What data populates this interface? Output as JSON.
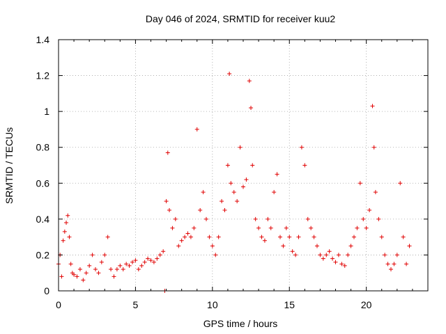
{
  "chart_data": {
    "type": "scatter",
    "title": "Day 046 of 2024, SRMTID for receiver kuu2",
    "xlabel": "GPS time / hours",
    "ylabel": "SRMTID / TECUs",
    "xlim": [
      0,
      24
    ],
    "ylim": [
      0,
      1.4
    ],
    "xticks": [
      "0",
      "5",
      "10",
      "15",
      "20"
    ],
    "yticks": [
      "0",
      "0.2",
      "0.4",
      "0.6",
      "0.8",
      "1",
      "1.2",
      "1.4"
    ],
    "grid": true,
    "marker": "+",
    "color": "#e00000",
    "series": [
      {
        "name": "SRMTID",
        "x": [
          0.0,
          0.1,
          0.2,
          0.3,
          0.4,
          0.5,
          0.6,
          0.7,
          0.8,
          0.9,
          1.0,
          1.2,
          1.4,
          1.6,
          1.8,
          2.0,
          2.2,
          2.4,
          2.6,
          2.8,
          3.0,
          3.2,
          3.4,
          3.6,
          3.8,
          4.0,
          4.2,
          4.4,
          4.6,
          4.8,
          5.0,
          5.2,
          5.4,
          5.6,
          5.8,
          6.0,
          6.2,
          6.4,
          6.6,
          6.8,
          6.9,
          7.0,
          7.1,
          7.2,
          7.4,
          7.6,
          7.8,
          8.0,
          8.2,
          8.4,
          8.6,
          8.8,
          9.0,
          9.2,
          9.4,
          9.6,
          9.8,
          10.0,
          10.2,
          10.4,
          10.6,
          10.8,
          11.0,
          11.1,
          11.2,
          11.4,
          11.6,
          11.8,
          12.0,
          12.2,
          12.4,
          12.5,
          12.6,
          12.8,
          13.0,
          13.2,
          13.4,
          13.6,
          13.8,
          14.0,
          14.2,
          14.4,
          14.6,
          14.8,
          15.0,
          15.2,
          15.4,
          15.6,
          15.8,
          16.0,
          16.2,
          16.4,
          16.6,
          16.8,
          17.0,
          17.2,
          17.4,
          17.6,
          17.8,
          18.0,
          18.2,
          18.4,
          18.6,
          18.8,
          19.0,
          19.2,
          19.4,
          19.6,
          19.8,
          20.0,
          20.2,
          20.4,
          20.5,
          20.6,
          20.8,
          21.0,
          21.2,
          21.4,
          21.6,
          21.8,
          22.0,
          22.2,
          22.4,
          22.6,
          22.8
        ],
        "y": [
          0.15,
          0.2,
          0.08,
          0.28,
          0.33,
          0.38,
          0.42,
          0.3,
          0.15,
          0.1,
          0.09,
          0.08,
          0.12,
          0.06,
          0.1,
          0.14,
          0.2,
          0.12,
          0.1,
          0.16,
          0.2,
          0.3,
          0.12,
          0.08,
          0.12,
          0.14,
          0.12,
          0.15,
          0.14,
          0.16,
          0.17,
          0.12,
          0.14,
          0.16,
          0.18,
          0.17,
          0.16,
          0.18,
          0.2,
          0.22,
          0.0,
          0.5,
          0.77,
          0.45,
          0.35,
          0.4,
          0.25,
          0.28,
          0.3,
          0.32,
          0.3,
          0.35,
          0.9,
          0.45,
          0.55,
          0.4,
          0.3,
          0.25,
          0.2,
          0.3,
          0.5,
          0.45,
          0.7,
          1.21,
          0.6,
          0.55,
          0.5,
          0.8,
          0.58,
          0.62,
          1.17,
          1.02,
          0.7,
          0.4,
          0.35,
          0.3,
          0.28,
          0.4,
          0.35,
          0.55,
          0.65,
          0.3,
          0.25,
          0.35,
          0.3,
          0.22,
          0.2,
          0.3,
          0.8,
          0.7,
          0.4,
          0.35,
          0.3,
          0.25,
          0.2,
          0.18,
          0.2,
          0.22,
          0.18,
          0.16,
          0.2,
          0.15,
          0.14,
          0.2,
          0.25,
          0.3,
          0.35,
          0.6,
          0.4,
          0.35,
          0.45,
          1.03,
          0.8,
          0.55,
          0.4,
          0.3,
          0.2,
          0.15,
          0.12,
          0.15,
          0.2,
          0.6,
          0.3,
          0.15,
          0.25
        ]
      }
    ]
  }
}
